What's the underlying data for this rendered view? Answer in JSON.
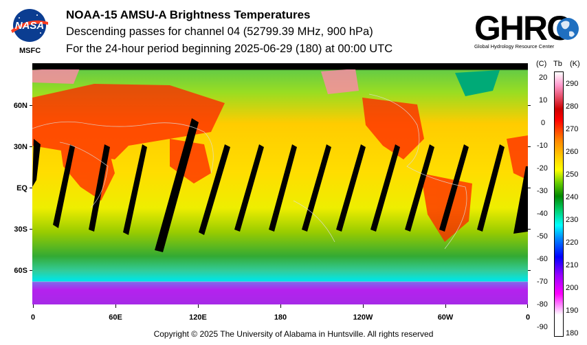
{
  "header": {
    "title": "NOAA-15 AMSU-A Brightness Temperatures",
    "subtitle": "Descending passes for channel 04 (52799.39 MHz, 900 hPa)",
    "period": "For the 24-hour period beginning 2025-06-29 (180) at 00:00 UTC"
  },
  "logos": {
    "nasa": "NASA",
    "msfc": "MSFC",
    "ghrc": "GHRC",
    "ghrc_sub": "Global Hydrology Resource Center"
  },
  "map": {
    "lat_labels": [
      "60N",
      "30N",
      "EQ",
      "30S",
      "60S"
    ],
    "lon_labels": [
      "0",
      "60E",
      "120E",
      "180",
      "120W",
      "60W",
      "0"
    ]
  },
  "colorbar": {
    "unit_c": "(C)",
    "unit_tb": "Tb",
    "unit_k": "(K)",
    "celsius": [
      "20",
      "10",
      "0",
      "-10",
      "-20",
      "-30",
      "-40",
      "-50",
      "-60",
      "-70",
      "-80",
      "-90"
    ],
    "kelvin": [
      "290",
      "280",
      "270",
      "260",
      "250",
      "240",
      "230",
      "220",
      "210",
      "200",
      "190",
      "180"
    ],
    "colors": [
      "#ffffff",
      "#ff00ff",
      "#9900ff",
      "#0000ff",
      "#0088ff",
      "#00ffff",
      "#00cc66",
      "#008800",
      "#66cc00",
      "#ffff00",
      "#ffcc00",
      "#ff8800",
      "#ff0000",
      "#cc0000",
      "#ff99cc",
      "#ffffff"
    ]
  },
  "footer": {
    "copyright": "Copyright © 2025 The University of Alabama in Huntsville.  All rights reserved"
  }
}
